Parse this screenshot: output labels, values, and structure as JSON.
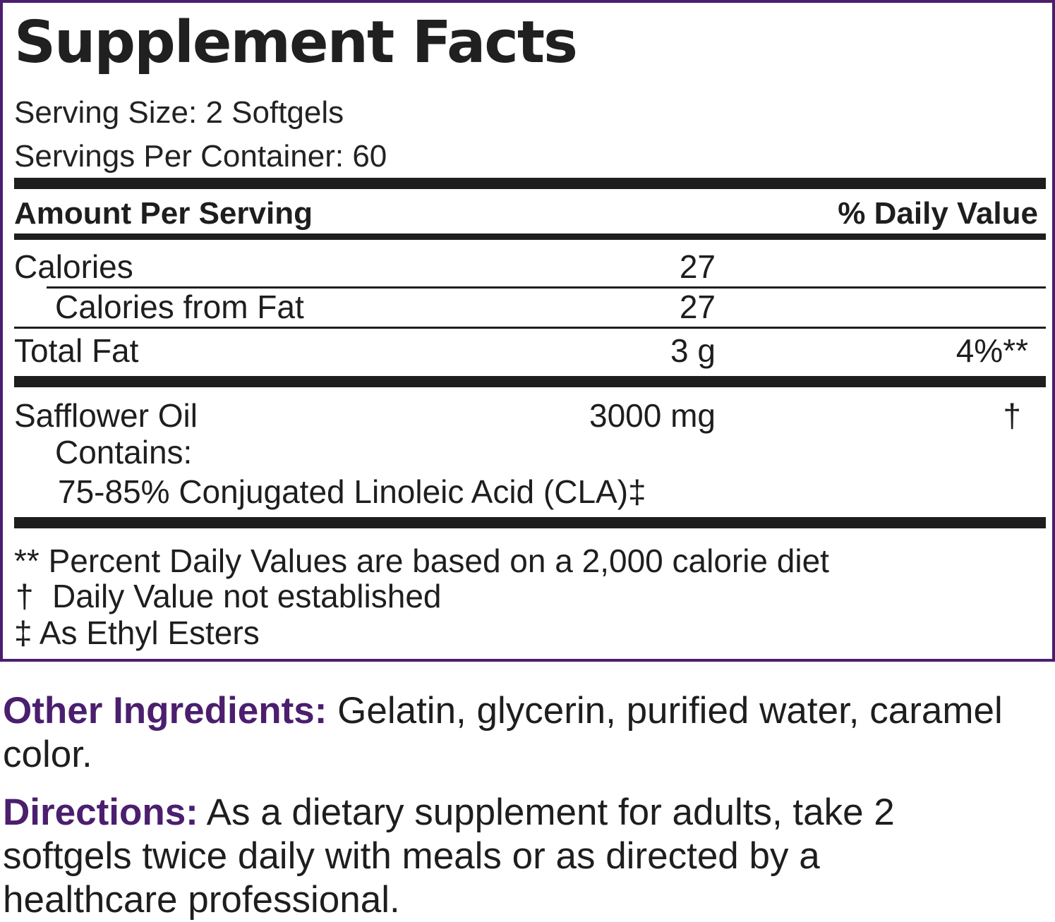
{
  "label": {
    "title": "Supplement Facts",
    "serving_size": "Serving Size: 2 Softgels",
    "servings_per_container": "Servings Per Container: 60",
    "header": {
      "amount": "Amount Per Serving",
      "daily_value": "% Daily Value"
    },
    "rows": {
      "calories": {
        "name": "Calories",
        "amount": "27"
      },
      "calories_from_fat": {
        "name": "Calories from Fat",
        "amount": "27"
      },
      "total_fat": {
        "name": "Total Fat",
        "amount": "3 g",
        "dv": "4%**"
      },
      "safflower_oil": {
        "name": "Safflower Oil",
        "amount": "3000 mg",
        "dv": "†"
      },
      "contains": "Contains:",
      "cla": "75-85% Conjugated Linoleic Acid (CLA)‡"
    },
    "footnotes": {
      "percent_daily": "** Percent Daily Values are based on a 2,000 calorie diet",
      "dagger_mark": "†",
      "dagger_text": "Daily Value not established",
      "ddagger": "‡ As Ethyl Esters"
    }
  },
  "other_ingredients": {
    "label": "Other Ingredients:",
    "text": " Gelatin, glycerin, purified water, caramel color."
  },
  "directions": {
    "label": "Directions:",
    "text": " As a dietary supplement for adults, take 2 softgels twice daily with meals or as directed by a healthcare professional."
  },
  "colors": {
    "accent_purple": "#4b1e6e",
    "text_dark": "#1e1e1e"
  }
}
